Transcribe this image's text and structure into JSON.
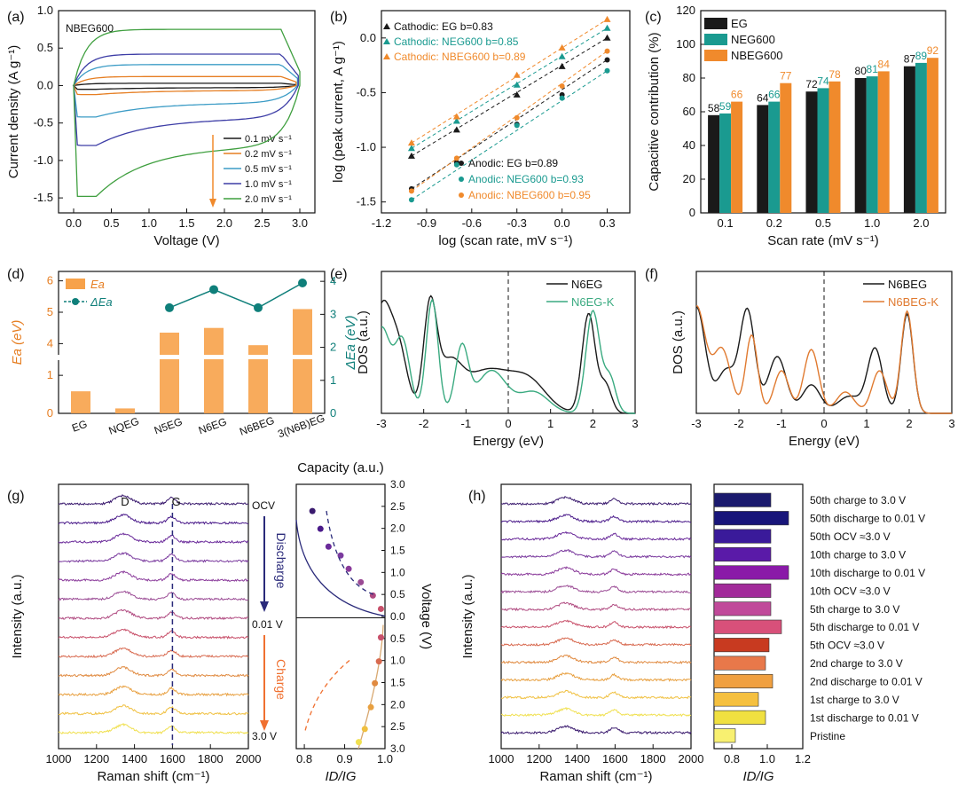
{
  "colors": {
    "EG": "#1a1a1a",
    "NEG600": "#1a9a90",
    "NBEG600": "#f08a2c",
    "ea_bar": "#f7a24a",
    "dea": "#0f7f7a",
    "n6eg": "#1a1a1a",
    "n6egk": "#3aaa80",
    "n6beg": "#1a1a1a",
    "n6begk": "#e07a30"
  },
  "panels": {
    "a": "(a)",
    "b": "(b)",
    "c": "(c)",
    "d": "(d)",
    "e": "(e)",
    "f": "(f)",
    "g": "(g)",
    "h": "(h)"
  },
  "chart_data": [
    {
      "id": "a",
      "type": "line",
      "annotation": "NBEG600",
      "xlabel": "Voltage (V)",
      "ylabel": "Current density (A g⁻¹)",
      "xlim": [
        -0.2,
        3.2
      ],
      "ylim": [
        -1.7,
        1.0
      ],
      "xticks": [
        "0.0",
        "0.5",
        "1.0",
        "1.5",
        "2.0",
        "2.5",
        "3.0"
      ],
      "yticks": [
        "-1.5",
        "-1.0",
        "-0.5",
        "0.0",
        "0.5",
        "1.0"
      ],
      "series": [
        {
          "name": "0.1 mV s⁻¹",
          "color": "#1a1a1a",
          "upper": 0.03,
          "lower": -0.05,
          "xmin": 0.0,
          "xmax": 2.95
        },
        {
          "name": "0.2 mV s⁻¹",
          "color": "#e67e22",
          "upper": 0.12,
          "lower": -0.12,
          "xmin": 0.0,
          "xmax": 2.95
        },
        {
          "name": "0.5 mV s⁻¹",
          "color": "#3c9cc6",
          "upper": 0.28,
          "lower": -0.42,
          "xmin": 0.0,
          "xmax": 2.97
        },
        {
          "name": "1.0 mV s⁻¹",
          "color": "#3d3da6",
          "upper": 0.42,
          "lower": -0.8,
          "xmin": 0.0,
          "xmax": 2.98
        },
        {
          "name": "2.0 mV s⁻¹",
          "color": "#3f9f3f",
          "upper": 0.75,
          "lower": -1.48,
          "xmin": 0.0,
          "xmax": 3.0
        }
      ]
    },
    {
      "id": "b",
      "type": "scatter",
      "xlabel": "log (scan rate, mV s⁻¹)",
      "ylabel": "log (peak current, A g⁻¹)",
      "xlim": [
        -1.2,
        0.45
      ],
      "ylim": [
        -1.6,
        0.25
      ],
      "xticks": [
        "-1.2",
        "-0.9",
        "-0.6",
        "-0.3",
        "0.0",
        "0.3"
      ],
      "yticks": [
        "-1.5",
        "-1.0",
        "-0.5",
        "0.0"
      ],
      "x": [
        -1.0,
        -0.7,
        -0.3,
        0.0,
        0.3
      ],
      "series": [
        {
          "name": "Cathodic: EG b=0.83",
          "color": "#1a1a1a",
          "marker": "triangle",
          "values": [
            -1.08,
            -0.84,
            -0.52,
            -0.26,
            0.0
          ]
        },
        {
          "name": "Cathodic: NEG600 b=0.85",
          "color": "#1a9a90",
          "marker": "triangle",
          "values": [
            -1.01,
            -0.76,
            -0.43,
            -0.17,
            0.09
          ]
        },
        {
          "name": "Cathodic: NBEG600 b=0.89",
          "color": "#f08a2c",
          "marker": "triangle",
          "values": [
            -0.96,
            -0.72,
            -0.34,
            -0.09,
            0.17
          ]
        },
        {
          "name": "Anodic: EG b=0.89",
          "color": "#1a1a1a",
          "marker": "circle",
          "values": [
            -1.38,
            -1.14,
            -0.79,
            -0.52,
            -0.2
          ]
        },
        {
          "name": "Anodic: NEG600 b=0.93",
          "color": "#1a9a90",
          "marker": "circle",
          "values": [
            -1.48,
            -1.16,
            -0.8,
            -0.55,
            -0.3
          ]
        },
        {
          "name": "Anodic: NBEG600 b=0.95",
          "color": "#f08a2c",
          "marker": "circle",
          "values": [
            -1.4,
            -1.1,
            -0.73,
            -0.44,
            -0.12
          ]
        }
      ]
    },
    {
      "id": "c",
      "type": "bar",
      "xlabel": "Scan rate (mV s⁻¹)",
      "ylabel": "Capacitive contribution (%)",
      "ylim": [
        0,
        120
      ],
      "yticks": [
        "0",
        "20",
        "40",
        "60",
        "80",
        "100",
        "120"
      ],
      "categories": [
        "0.1",
        "0.2",
        "0.5",
        "1.0",
        "2.0"
      ],
      "series": [
        {
          "name": "EG",
          "color": "#1a1a1a",
          "values": [
            58,
            64,
            72,
            80,
            87
          ]
        },
        {
          "name": "NEG600",
          "color": "#1a9a90",
          "values": [
            59,
            66,
            74,
            81,
            89
          ]
        },
        {
          "name": "NBEG600",
          "color": "#f08a2c",
          "values": [
            66,
            77,
            78,
            84,
            92
          ]
        }
      ]
    },
    {
      "id": "d",
      "type": "bar",
      "ylabel": "Ea (eV)",
      "ylabel_right": "ΔEa (eV)",
      "legend": [
        "Ea",
        "ΔEa"
      ],
      "categories": [
        "EG",
        "NQEG",
        "N5EG",
        "N6EG",
        "N6BEG",
        "3(N6B)EG"
      ],
      "ea": [
        0.58,
        0.13,
        4.35,
        4.5,
        3.95,
        5.1
      ],
      "dea": [
        null,
        null,
        3.2,
        3.75,
        3.2,
        3.95
      ],
      "yticks_low": [
        "0",
        "1"
      ],
      "yticks_high": [
        "4",
        "5",
        "6"
      ],
      "yticks_right": [
        "0",
        "1",
        "2",
        "3",
        "4"
      ]
    },
    {
      "id": "e",
      "type": "line",
      "xlabel": "Energy (eV)",
      "ylabel": "DOS (a.u.)",
      "xlim": [
        -3,
        3
      ],
      "xticks": [
        "-3",
        "-2",
        "-1",
        "0",
        "1",
        "2",
        "3"
      ],
      "series": [
        {
          "name": "N6EG",
          "color": "#1a1a1a"
        },
        {
          "name": "N6EG-K",
          "color": "#3aaa80"
        }
      ]
    },
    {
      "id": "f",
      "type": "line",
      "xlabel": "Energy (eV)",
      "ylabel": "DOS (a.u.)",
      "xlim": [
        -3,
        3
      ],
      "xticks": [
        "-3",
        "-2",
        "-1",
        "0",
        "1",
        "2",
        "3"
      ],
      "series": [
        {
          "name": "N6BEG",
          "color": "#1a1a1a"
        },
        {
          "name": "N6BEG-K",
          "color": "#e07a30"
        }
      ]
    },
    {
      "id": "g",
      "type": "line",
      "xlabel": "Raman shift (cm⁻¹)",
      "ylabel": "Intensity (a.u.)",
      "xlim": [
        1000,
        2000
      ],
      "xticks": [
        "1000",
        "1200",
        "1400",
        "1600",
        "1800",
        "2000"
      ],
      "peaks": [
        "D",
        "G"
      ],
      "labels": [
        "OCV",
        "Discharge",
        "0.01 V",
        "Charge",
        "3.0 V"
      ],
      "inset": {
        "top_label": "Capacity (a.u.)",
        "xlabel": "ID/IG",
        "ylabel": "Voltage (V)",
        "xticks": [
          "0.8",
          "0.9",
          "1.0"
        ],
        "yticks": [
          "3.0",
          "2.5",
          "2.0",
          "1.5",
          "1.0",
          "0.5",
          "0.0",
          "0.5",
          "1.0",
          "1.5",
          "2.0",
          "2.5",
          "3.0"
        ],
        "discharge_points": [
          [
            0.82,
            2.4
          ],
          [
            0.84,
            2.0
          ],
          [
            0.86,
            1.6
          ],
          [
            0.89,
            1.4
          ],
          [
            0.91,
            1.1
          ],
          [
            0.94,
            0.8
          ],
          [
            0.97,
            0.5
          ],
          [
            0.99,
            0.2
          ]
        ],
        "charge_points": [
          [
            0.99,
            0.45
          ],
          [
            0.985,
            1.0
          ],
          [
            0.975,
            1.5
          ],
          [
            0.965,
            2.05
          ],
          [
            0.95,
            2.55
          ],
          [
            0.935,
            2.85
          ]
        ]
      },
      "n_spectra": 13
    },
    {
      "id": "h",
      "type": "bar",
      "xlabel": "Raman shift (cm⁻¹)",
      "ylabel": "Intensity (a.u.)",
      "xlim": [
        1000,
        2000
      ],
      "xticks": [
        "1000",
        "1200",
        "1400",
        "1600",
        "1800",
        "2000"
      ],
      "bar_xlabel": "ID/IG",
      "bar_xlim": [
        0.7,
        1.2
      ],
      "bar_xticks": [
        "0.8",
        "1.0",
        "1.2"
      ],
      "categories": [
        "50th charge to 3.0 V",
        "50th discharge to 0.01 V",
        "50th OCV ≈3.0 V",
        "10th charge to 3.0 V",
        "10th discharge to 0.01 V",
        "10th OCV ≈3.0 V",
        "5th charge to 3.0 V",
        "5th discharge to 0.01 V",
        "5th OCV ≈3.0 V",
        "2nd charge to 3.0 V",
        "2nd discharge to 0.01 V",
        "1st charge to 3.0 V",
        "1st discharge to 0.01 V",
        "Pristine"
      ],
      "values": [
        1.02,
        1.12,
        1.02,
        1.02,
        1.12,
        1.02,
        1.02,
        1.08,
        1.01,
        0.99,
        1.03,
        0.95,
        0.99,
        0.82
      ],
      "bar_colors": [
        "#1b1a6e",
        "#18157a",
        "#3a1a9a",
        "#5a1aa8",
        "#8a1aa8",
        "#a22a9a",
        "#c04a9a",
        "#d8507a",
        "#c83a20",
        "#e8784a",
        "#f0a040",
        "#f5c040",
        "#f0e040",
        "#f8f070"
      ]
    }
  ]
}
